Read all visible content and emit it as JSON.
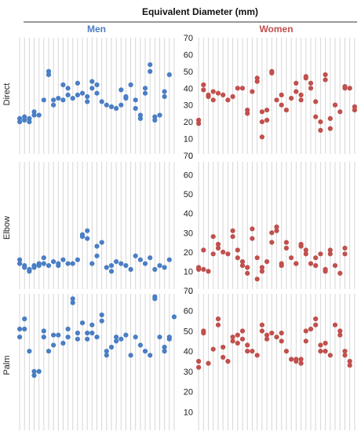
{
  "chart_data": {
    "type": "scatter",
    "title": "Equivalent Diameter (mm)",
    "columns": [
      "Men",
      "Women"
    ],
    "rows": [
      "Direct",
      "Elbow",
      "Palm"
    ],
    "ylim": [
      0,
      70
    ],
    "yticks": [
      "70",
      "60",
      "50",
      "40",
      "30",
      "20",
      "10",
      "0"
    ],
    "colors": {
      "Men": "#4a7ec4",
      "Women": "#c0504d"
    },
    "grid": "vertical",
    "categories_per_panel": 33,
    "panels": [
      {
        "row": "Direct",
        "column": "Men",
        "points": [
          [
            1,
            20
          ],
          [
            1,
            22
          ],
          [
            2,
            23
          ],
          [
            2,
            21
          ],
          [
            3,
            20
          ],
          [
            3,
            22
          ],
          [
            4,
            26
          ],
          [
            4,
            24
          ],
          [
            5,
            24
          ],
          [
            6,
            33
          ],
          [
            7,
            50
          ],
          [
            7,
            48
          ],
          [
            8,
            33
          ],
          [
            8,
            30
          ],
          [
            9,
            34
          ],
          [
            10,
            42
          ],
          [
            10,
            33
          ],
          [
            11,
            40
          ],
          [
            11,
            36
          ],
          [
            12,
            34
          ],
          [
            13,
            43
          ],
          [
            13,
            36
          ],
          [
            14,
            37
          ],
          [
            15,
            35
          ],
          [
            15,
            32
          ],
          [
            16,
            44
          ],
          [
            16,
            40
          ],
          [
            17,
            37
          ],
          [
            17,
            42
          ],
          [
            18,
            32
          ],
          [
            19,
            30
          ],
          [
            20,
            29
          ],
          [
            21,
            28
          ],
          [
            22,
            39
          ],
          [
            22,
            30
          ],
          [
            23,
            35
          ],
          [
            23,
            34
          ],
          [
            24,
            42
          ],
          [
            25,
            33
          ],
          [
            25,
            28
          ],
          [
            26,
            24
          ],
          [
            26,
            22
          ],
          [
            27,
            40
          ],
          [
            27,
            37
          ],
          [
            28,
            54
          ],
          [
            28,
            50
          ],
          [
            29,
            23
          ],
          [
            29,
            21
          ],
          [
            30,
            24
          ],
          [
            31,
            38
          ],
          [
            31,
            35
          ],
          [
            32,
            48
          ]
        ]
      },
      {
        "row": "Direct",
        "column": "Women",
        "points": [
          [
            1,
            21
          ],
          [
            1,
            19
          ],
          [
            2,
            42
          ],
          [
            2,
            39
          ],
          [
            3,
            36
          ],
          [
            3,
            35
          ],
          [
            4,
            38
          ],
          [
            4,
            33
          ],
          [
            5,
            37
          ],
          [
            6,
            36
          ],
          [
            7,
            33
          ],
          [
            8,
            35
          ],
          [
            9,
            40
          ],
          [
            10,
            40
          ],
          [
            11,
            27
          ],
          [
            11,
            25
          ],
          [
            12,
            38
          ],
          [
            13,
            44
          ],
          [
            13,
            46
          ],
          [
            14,
            26
          ],
          [
            14,
            20
          ],
          [
            14,
            11
          ],
          [
            15,
            27
          ],
          [
            15,
            21
          ],
          [
            16,
            49
          ],
          [
            16,
            50
          ],
          [
            17,
            33
          ],
          [
            18,
            36
          ],
          [
            18,
            30
          ],
          [
            19,
            27
          ],
          [
            20,
            34
          ],
          [
            21,
            43
          ],
          [
            21,
            38
          ],
          [
            22,
            36
          ],
          [
            22,
            33
          ],
          [
            23,
            47
          ],
          [
            23,
            46
          ],
          [
            24,
            43
          ],
          [
            24,
            40
          ],
          [
            25,
            32
          ],
          [
            25,
            23
          ],
          [
            26,
            20
          ],
          [
            26,
            15
          ],
          [
            27,
            48
          ],
          [
            27,
            45
          ],
          [
            28,
            22
          ],
          [
            28,
            16
          ],
          [
            29,
            30
          ],
          [
            29,
            30
          ],
          [
            30,
            26
          ],
          [
            31,
            41
          ],
          [
            31,
            40
          ],
          [
            32,
            40
          ],
          [
            33,
            29
          ],
          [
            33,
            27
          ]
        ]
      },
      {
        "row": "Elbow",
        "column": "Men",
        "points": [
          [
            1,
            16
          ],
          [
            1,
            14
          ],
          [
            2,
            13
          ],
          [
            2,
            12
          ],
          [
            3,
            11
          ],
          [
            3,
            10
          ],
          [
            4,
            13
          ],
          [
            4,
            12
          ],
          [
            5,
            14
          ],
          [
            5,
            13
          ],
          [
            6,
            17
          ],
          [
            6,
            14
          ],
          [
            7,
            13
          ],
          [
            8,
            15
          ],
          [
            9,
            14
          ],
          [
            9,
            13
          ],
          [
            10,
            16
          ],
          [
            11,
            14
          ],
          [
            12,
            14
          ],
          [
            13,
            16
          ],
          [
            14,
            29
          ],
          [
            14,
            28
          ],
          [
            15,
            31
          ],
          [
            15,
            27
          ],
          [
            16,
            14
          ],
          [
            17,
            23
          ],
          [
            17,
            18
          ],
          [
            18,
            25
          ],
          [
            19,
            12
          ],
          [
            20,
            10
          ],
          [
            20,
            13
          ],
          [
            21,
            15
          ],
          [
            22,
            14
          ],
          [
            23,
            13
          ],
          [
            24,
            11
          ],
          [
            25,
            18
          ],
          [
            26,
            16
          ],
          [
            27,
            14
          ],
          [
            28,
            17
          ],
          [
            29,
            11
          ],
          [
            30,
            13
          ],
          [
            31,
            12
          ],
          [
            32,
            16
          ]
        ]
      },
      {
        "row": "Elbow",
        "column": "Women",
        "points": [
          [
            1,
            12
          ],
          [
            1,
            11
          ],
          [
            2,
            21
          ],
          [
            2,
            11
          ],
          [
            3,
            10
          ],
          [
            4,
            28
          ],
          [
            4,
            19
          ],
          [
            5,
            24
          ],
          [
            5,
            22
          ],
          [
            6,
            20
          ],
          [
            7,
            19
          ],
          [
            8,
            31
          ],
          [
            8,
            28
          ],
          [
            9,
            21
          ],
          [
            9,
            17
          ],
          [
            10,
            15
          ],
          [
            10,
            13
          ],
          [
            11,
            12
          ],
          [
            11,
            9
          ],
          [
            12,
            27
          ],
          [
            12,
            32
          ],
          [
            13,
            17
          ],
          [
            13,
            6
          ],
          [
            14,
            12
          ],
          [
            14,
            10
          ],
          [
            15,
            15
          ],
          [
            16,
            25
          ],
          [
            16,
            30
          ],
          [
            17,
            33
          ],
          [
            17,
            31
          ],
          [
            18,
            14
          ],
          [
            18,
            13
          ],
          [
            19,
            22
          ],
          [
            19,
            25
          ],
          [
            20,
            17
          ],
          [
            21,
            14
          ],
          [
            21,
            14
          ],
          [
            22,
            24
          ],
          [
            22,
            23
          ],
          [
            23,
            21
          ],
          [
            23,
            19
          ],
          [
            24,
            14
          ],
          [
            25,
            17
          ],
          [
            25,
            13
          ],
          [
            26,
            19
          ],
          [
            27,
            10
          ],
          [
            27,
            11
          ],
          [
            28,
            21
          ],
          [
            28,
            19
          ],
          [
            29,
            13
          ],
          [
            30,
            9
          ],
          [
            31,
            22
          ],
          [
            31,
            19
          ]
        ]
      },
      {
        "row": "Palm",
        "column": "Men",
        "points": [
          [
            1,
            47
          ],
          [
            1,
            51
          ],
          [
            2,
            56
          ],
          [
            2,
            51
          ],
          [
            3,
            40
          ],
          [
            4,
            28
          ],
          [
            4,
            30
          ],
          [
            5,
            30
          ],
          [
            6,
            50
          ],
          [
            6,
            47
          ],
          [
            7,
            40
          ],
          [
            8,
            48
          ],
          [
            8,
            43
          ],
          [
            9,
            48
          ],
          [
            10,
            44
          ],
          [
            11,
            51
          ],
          [
            11,
            47
          ],
          [
            12,
            64
          ],
          [
            12,
            66
          ],
          [
            13,
            49
          ],
          [
            13,
            46
          ],
          [
            14,
            54
          ],
          [
            15,
            49
          ],
          [
            15,
            46
          ],
          [
            16,
            53
          ],
          [
            16,
            49
          ],
          [
            17,
            47
          ],
          [
            18,
            58
          ],
          [
            18,
            55
          ],
          [
            19,
            38
          ],
          [
            19,
            40
          ],
          [
            20,
            42
          ],
          [
            21,
            45
          ],
          [
            21,
            47
          ],
          [
            22,
            46
          ],
          [
            23,
            48
          ],
          [
            24,
            38
          ],
          [
            25,
            47
          ],
          [
            26,
            43
          ],
          [
            27,
            40
          ],
          [
            28,
            38
          ],
          [
            29,
            67
          ],
          [
            29,
            66
          ],
          [
            30,
            47
          ],
          [
            31,
            42
          ],
          [
            31,
            40
          ],
          [
            32,
            46
          ],
          [
            32,
            47
          ],
          [
            33,
            57
          ]
        ]
      },
      {
        "row": "Palm",
        "column": "Women",
        "points": [
          [
            1,
            35
          ],
          [
            1,
            32
          ],
          [
            2,
            50
          ],
          [
            2,
            49
          ],
          [
            3,
            34
          ],
          [
            4,
            41
          ],
          [
            5,
            56
          ],
          [
            5,
            53
          ],
          [
            6,
            37
          ],
          [
            6,
            42
          ],
          [
            7,
            35
          ],
          [
            8,
            45
          ],
          [
            8,
            47
          ],
          [
            9,
            48
          ],
          [
            9,
            44
          ],
          [
            10,
            50
          ],
          [
            10,
            46
          ],
          [
            11,
            43
          ],
          [
            11,
            40
          ],
          [
            12,
            40
          ],
          [
            13,
            38
          ],
          [
            14,
            50
          ],
          [
            14,
            53
          ],
          [
            15,
            48
          ],
          [
            15,
            46
          ],
          [
            16,
            49
          ],
          [
            17,
            47
          ],
          [
            18,
            45
          ],
          [
            18,
            49
          ],
          [
            19,
            40
          ],
          [
            20,
            36
          ],
          [
            21,
            35
          ],
          [
            21,
            36
          ],
          [
            22,
            34
          ],
          [
            22,
            36
          ],
          [
            23,
            50
          ],
          [
            23,
            45
          ],
          [
            24,
            51
          ],
          [
            25,
            56
          ],
          [
            25,
            53
          ],
          [
            26,
            43
          ],
          [
            26,
            40
          ],
          [
            27,
            44
          ],
          [
            27,
            40
          ],
          [
            28,
            38
          ],
          [
            29,
            53
          ],
          [
            30,
            50
          ],
          [
            30,
            48
          ],
          [
            31,
            40
          ],
          [
            31,
            38
          ],
          [
            32,
            35
          ],
          [
            32,
            33
          ]
        ]
      }
    ]
  }
}
